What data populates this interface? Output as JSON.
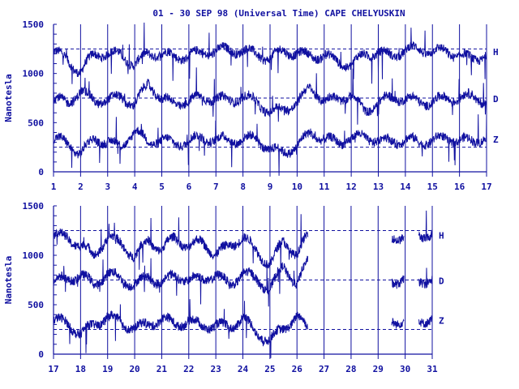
{
  "colors": {
    "ink": "#1010a0",
    "background": "#ffffff"
  },
  "chart_data": [
    {
      "type": "line",
      "title": "01 - 30 SEP 98 (Universal Time) CAPE CHELYUSKIN",
      "ylabel": "Nanotesla",
      "xlabel": "",
      "xlim": [
        1,
        17
      ],
      "ylim": [
        0,
        1500
      ],
      "x_ticks": [
        "1",
        "2",
        "3",
        "4",
        "5",
        "6",
        "7",
        "8",
        "9",
        "10",
        "11",
        "12",
        "13",
        "14",
        "15",
        "16",
        "17"
      ],
      "y_ticks": [
        "0",
        "500",
        "1000",
        "1500"
      ],
      "grid": "vertical lines at each day",
      "reference_lines": [
        1250,
        750,
        250
      ],
      "series": [
        {
          "name": "H",
          "baseline": 1220,
          "values": [
            1220,
            1150,
            1000,
            1210,
            1190,
            1200,
            1080,
            1210,
            1200,
            1170,
            1180,
            1210,
            1230,
            1240,
            1230,
            1200,
            1150,
            1240,
            1200,
            1180,
            1180,
            1120,
            1080,
            1200,
            1210,
            1180,
            1240,
            1250,
            1220,
            1230,
            1180,
            1150,
            1190
          ]
        },
        {
          "name": "D",
          "baseline": 740,
          "values": [
            740,
            700,
            820,
            720,
            730,
            760,
            680,
            900,
            740,
            690,
            720,
            760,
            740,
            730,
            760,
            720,
            600,
            640,
            700,
            860,
            720,
            740,
            780,
            620,
            700,
            760,
            740,
            720,
            700,
            760,
            740,
            780,
            700
          ]
        },
        {
          "name": "Z",
          "baseline": 330,
          "values": [
            330,
            300,
            180,
            340,
            300,
            260,
            420,
            300,
            330,
            280,
            320,
            340,
            330,
            320,
            330,
            340,
            220,
            200,
            260,
            400,
            330,
            300,
            340,
            360,
            320,
            310,
            330,
            300,
            320,
            340,
            320,
            310,
            360
          ]
        }
      ]
    },
    {
      "type": "line",
      "title": "",
      "ylabel": "Nanotesla",
      "xlabel": "",
      "xlim": [
        17,
        31
      ],
      "ylim": [
        0,
        1500
      ],
      "x_ticks": [
        "17",
        "18",
        "19",
        "20",
        "21",
        "22",
        "23",
        "24",
        "25",
        "26",
        "27",
        "28",
        "29",
        "30",
        "31"
      ],
      "y_ticks": [
        "0",
        "500",
        "1000",
        "1500"
      ],
      "grid": "vertical lines at each day",
      "reference_lines": [
        1250,
        750,
        250
      ],
      "data_gaps": [
        [
          26.4,
          29.5
        ],
        [
          29.95,
          30.5
        ]
      ],
      "series": [
        {
          "name": "H",
          "baseline": 1200,
          "values": [
            1200,
            1180,
            1100,
            1000,
            1180,
            1120,
            980,
            1160,
            1050,
            1190,
            1080,
            1150,
            1000,
            1100,
            1180,
            1050,
            900,
            1150,
            1000,
            1250,
            1100,
            1050,
            1200,
            1250,
            1150,
            1180,
            1200,
            1200,
            1220
          ]
        },
        {
          "name": "D",
          "baseline": 740,
          "values": [
            740,
            760,
            800,
            700,
            820,
            760,
            700,
            780,
            720,
            800,
            750,
            760,
            800,
            700,
            820,
            760,
            650,
            900,
            700,
            1000,
            780,
            740,
            760,
            800,
            740,
            720,
            780,
            740,
            760
          ]
        },
        {
          "name": "Z",
          "baseline": 340,
          "values": [
            340,
            320,
            200,
            300,
            380,
            320,
            260,
            300,
            360,
            300,
            340,
            280,
            300,
            260,
            380,
            200,
            150,
            250,
            400,
            200,
            350,
            360,
            340,
            300,
            320,
            330,
            350,
            340,
            360
          ]
        }
      ]
    }
  ]
}
